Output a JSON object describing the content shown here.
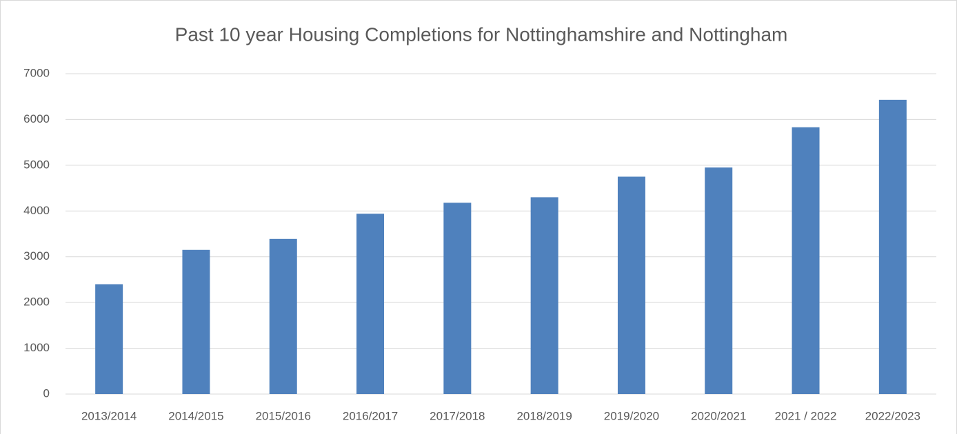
{
  "chart_data": {
    "type": "bar",
    "title": "Past 10 year Housing Completions for Nottinghamshire and Nottingham",
    "categories": [
      "2013/2014",
      "2014/2015",
      "2015/2016",
      "2016/2017",
      "2017/2018",
      "2018/2019",
      "2019/2020",
      "2020/2021",
      "2021 / 2022",
      "2022/2023"
    ],
    "values": [
      2400,
      3150,
      3390,
      3940,
      4180,
      4300,
      4750,
      4950,
      5830,
      6430
    ],
    "color": "#4f81bd",
    "ylim": [
      0,
      7000
    ],
    "yticks": [
      0,
      1000,
      2000,
      3000,
      4000,
      5000,
      6000,
      7000
    ],
    "grid": true
  }
}
